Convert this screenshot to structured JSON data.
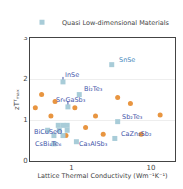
{
  "chart_data": {
    "type": "scatter",
    "xlabel": "Lattice Thermal Conductivity (Wm⁻¹K⁻¹)",
    "ylabel": "zTᵀₘₐₓ",
    "log": "x",
    "xlim": [
      0.3,
      20
    ],
    "ylim": [
      0,
      3
    ],
    "xticks": [
      1,
      10
    ],
    "yticks": [
      0,
      1,
      2,
      3
    ],
    "grid": "y",
    "legend": "upper right",
    "series": [
      {
        "color": "#e89540",
        "marker": "circle",
        "x": [
          0.35,
          0.42,
          0.55,
          0.62,
          1.1,
          1.5,
          2.0,
          2.5,
          3.8,
          5.5,
          7.5,
          13.0,
          0.85
        ],
        "y": [
          1.3,
          1.62,
          1.1,
          1.45,
          1.3,
          0.82,
          1.1,
          0.65,
          1.55,
          1.4,
          0.65,
          1.12,
          0.62
        ]
      },
      {
        "name": "Quasi Low-dimensional Materials",
        "color": "#a8ccd8",
        "marker": "square",
        "x": [
          3.2,
          0.78,
          1.25,
          0.9,
          3.8,
          3.5,
          0.5,
          0.6,
          0.7,
          0.78,
          0.88,
          0.78,
          0.68,
          0.88,
          0.6,
          1.15
        ],
        "y": [
          2.35,
          1.93,
          1.62,
          1.32,
          0.96,
          0.55,
          0.75,
          0.62,
          0.75,
          0.62,
          0.75,
          0.87,
          0.87,
          0.87,
          0.42,
          0.47
        ]
      }
    ],
    "lines": [
      {
        "x": 0.78,
        "y1": 1.93,
        "y2": 2.05,
        "color": "#4455aa"
      },
      {
        "x": 0.9,
        "y1": 1.32,
        "y2": 1.46,
        "color": "#4455aa"
      }
    ],
    "annotations": [
      {
        "text": "SnSe",
        "x": 3.7,
        "y": 2.32,
        "color": "#4488bb"
      },
      {
        "text": "InSe",
        "x": 0.78,
        "y": 1.96,
        "color": "#4455aa"
      },
      {
        "text": "Bi₂Te₃",
        "x": 1.35,
        "y": 1.62,
        "color": "#4455aa"
      },
      {
        "text": "Sr₉GaSb₃",
        "x": 0.6,
        "y": 1.34,
        "color": "#4455aa"
      },
      {
        "text": "Sb₂Te₃",
        "x": 4.1,
        "y": 0.93,
        "color": "#4455aa"
      },
      {
        "text": "CaZn₂Sb₂",
        "x": 3.9,
        "y": 0.52,
        "color": "#4455aa"
      },
      {
        "text": "BiCuSeO",
        "x": 0.32,
        "y": 0.55,
        "color": "#4455aa"
      },
      {
        "text": "CsBi₄Te₆",
        "x": 0.33,
        "y": 0.26,
        "color": "#4455aa"
      },
      {
        "text": "Ca₃AlSb₃",
        "x": 1.18,
        "y": 0.28,
        "color": "#4455aa"
      }
    ]
  }
}
